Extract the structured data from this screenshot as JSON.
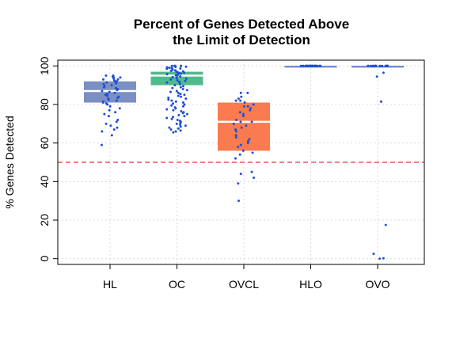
{
  "chart_data": {
    "type": "box",
    "title_lines": [
      "Percent of Genes Detected Above",
      "the Limit of Detection"
    ],
    "xlabel": "",
    "ylabel": "% Genes Detected",
    "ylim": [
      -3,
      103
    ],
    "yticks": [
      0,
      20,
      40,
      60,
      80,
      100
    ],
    "grid": true,
    "threshold": 50,
    "colors": {
      "HL": "#7b8fc2",
      "OC": "#4fba8c",
      "OVCL": "#f97b4f",
      "HLO": "#5b78c8",
      "OVO": "#5b78c8",
      "points": "#1f4fd6",
      "threshold": "#e0383b",
      "grid": "#d9d9d9"
    },
    "categories": [
      "HL",
      "OC",
      "OVCL",
      "HLO",
      "OVO"
    ],
    "boxes": [
      {
        "name": "HL",
        "q1": 81,
        "median": 87,
        "q3": 92
      },
      {
        "name": "OC",
        "q1": 90,
        "median": 95,
        "q3": 97
      },
      {
        "name": "OVCL",
        "q1": 56,
        "median": 71,
        "q3": 81
      },
      {
        "name": "HLO",
        "q1": 100,
        "median": 100,
        "q3": 100
      },
      {
        "name": "OVO",
        "q1": 100,
        "median": 100,
        "q3": 100
      }
    ],
    "points": {
      "HL": [
        95,
        95,
        94.5,
        94,
        94,
        93.5,
        93,
        93,
        92.5,
        92,
        92,
        91.5,
        91,
        90.5,
        90,
        89.5,
        89,
        88.5,
        88,
        87.5,
        87,
        86.5,
        86,
        85.5,
        85,
        84.5,
        84,
        83.5,
        83,
        82.5,
        82,
        81.5,
        81,
        80.5,
        80,
        79,
        78,
        77,
        76,
        75,
        74,
        72,
        71,
        70,
        69,
        68,
        67,
        66,
        64,
        59
      ],
      "OC": [
        100,
        100,
        100,
        100,
        100,
        100,
        99.8,
        99.6,
        99.5,
        99.3,
        99,
        99,
        98.7,
        98.5,
        98.2,
        98,
        97.7,
        97.5,
        97.2,
        97,
        96.7,
        96.5,
        96.2,
        96,
        95.7,
        95.5,
        95.2,
        95,
        94.6,
        94.2,
        93.8,
        93.4,
        93,
        92.6,
        92.2,
        91.8,
        91.4,
        91,
        90.5,
        90,
        89.5,
        89,
        88.5,
        88,
        87.5,
        87,
        86.5,
        86,
        85.5,
        85,
        84.5,
        84,
        83.5,
        83,
        82.5,
        82,
        81.5,
        81,
        80.5,
        80,
        79.5,
        79,
        78.5,
        78,
        77.5,
        77,
        76.5,
        76,
        75.5,
        75,
        74.5,
        74,
        73.5,
        73,
        72.5,
        72,
        71.5,
        71,
        70.5,
        70,
        69.5,
        69,
        68.5,
        68,
        67.5,
        67,
        66.5,
        66,
        65.5
      ],
      "OVCL": [
        86,
        86,
        84,
        83,
        82,
        82,
        81,
        80,
        79,
        79,
        78,
        77,
        76,
        75,
        74,
        72,
        71,
        71,
        70,
        69,
        68,
        67,
        66,
        64,
        63,
        62,
        61,
        60,
        59,
        58,
        56,
        55,
        54,
        52,
        45,
        44,
        42,
        39,
        30
      ],
      "HLO": [
        100,
        100,
        100,
        100,
        100,
        100,
        100,
        100,
        100,
        100,
        100,
        100,
        100,
        100,
        100,
        100,
        100,
        100,
        100,
        100,
        100,
        100,
        100,
        100,
        100,
        100,
        100,
        100,
        100,
        100
      ],
      "OVO": [
        100,
        100,
        100,
        100,
        100,
        100,
        100,
        100,
        100,
        100,
        100,
        100,
        100,
        100,
        100,
        100,
        100,
        100,
        96.5,
        94.5,
        81.5,
        17.5,
        2.5,
        0.2,
        0
      ]
    }
  }
}
